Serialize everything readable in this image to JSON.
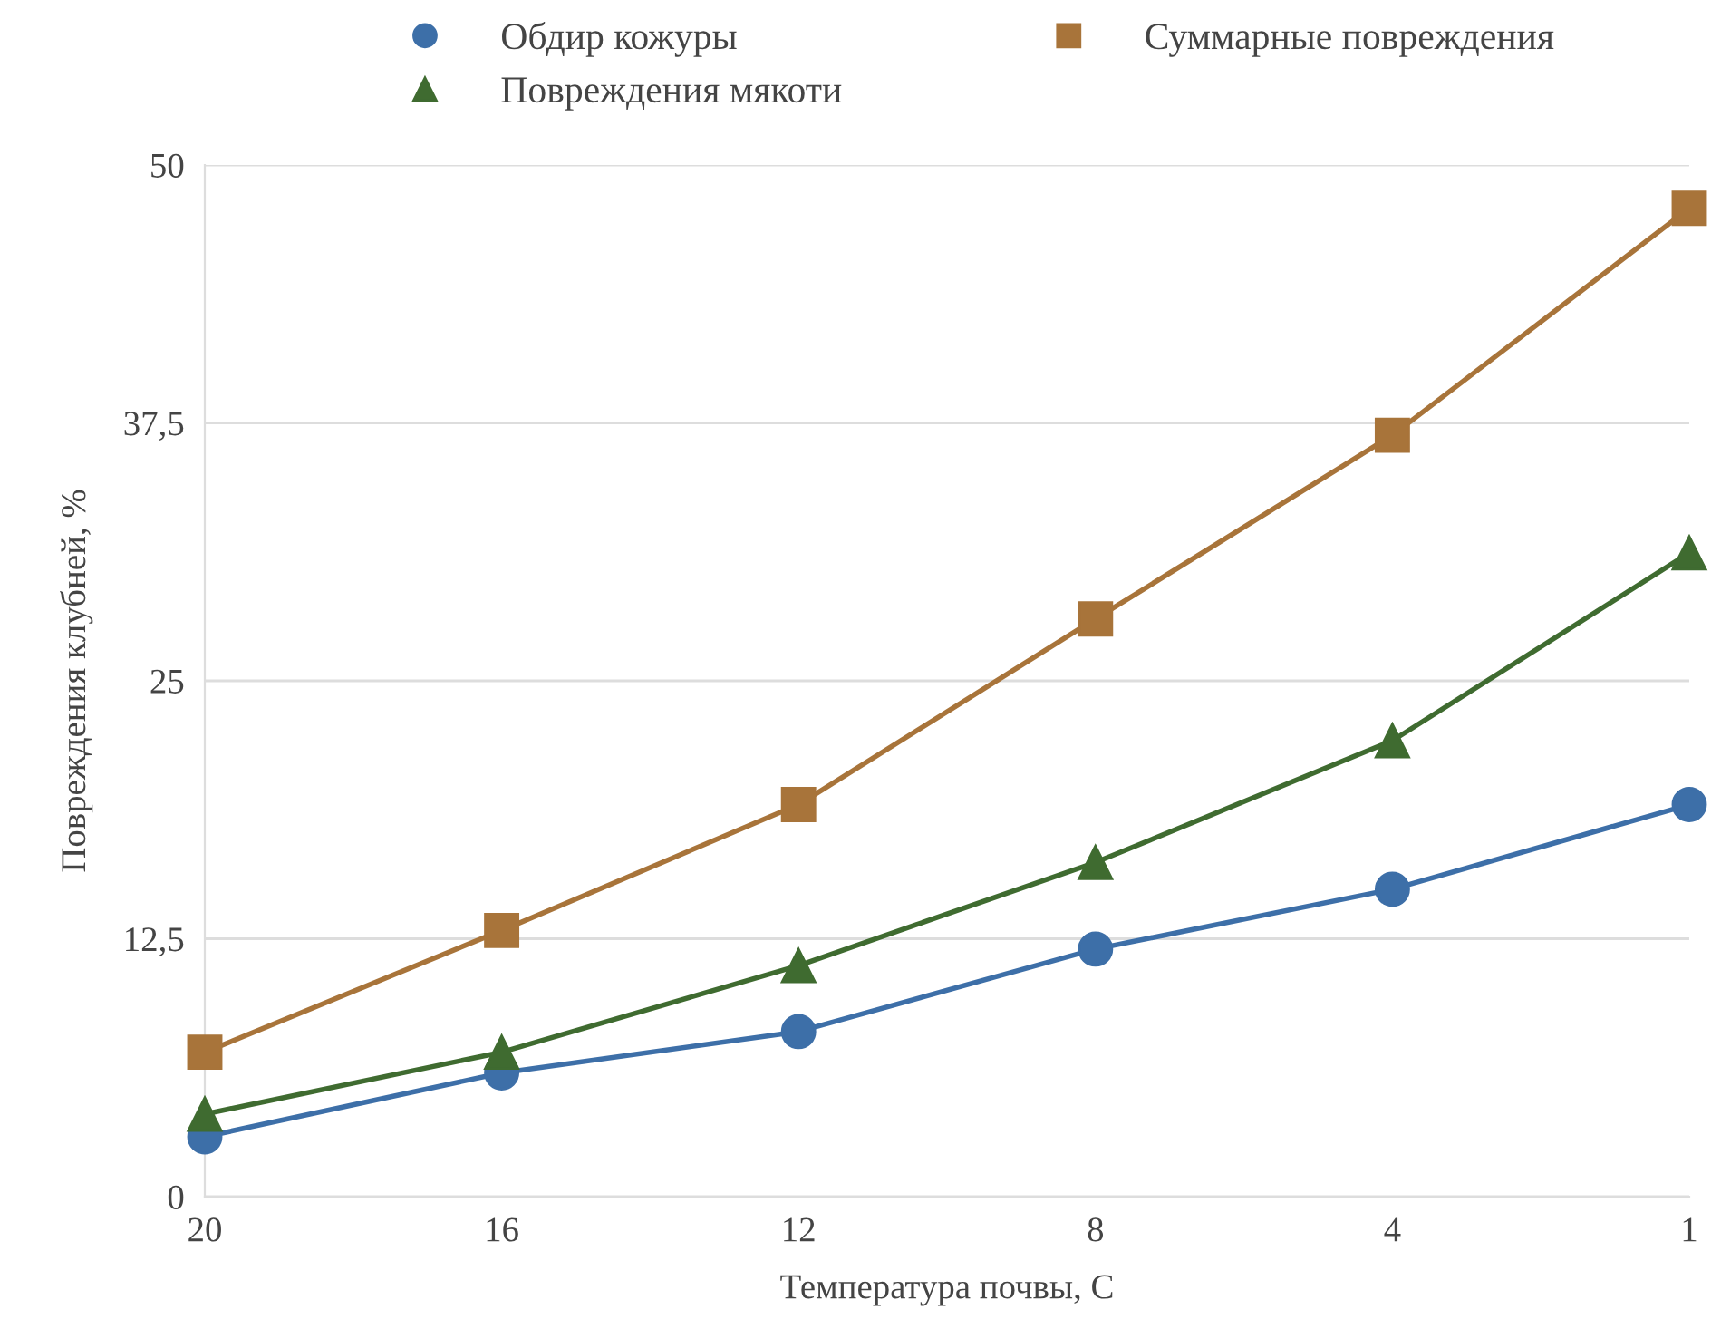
{
  "chart_data": {
    "type": "line",
    "xlabel": "Температура почвы, С",
    "ylabel": "Повреждения клубней, %",
    "categories": [
      "20",
      "16",
      "12",
      "8",
      "4",
      "1"
    ],
    "series": [
      {
        "name": "Обдир кожуры",
        "color": "#3d6fa8",
        "marker": "circle",
        "values": [
          2.9,
          6.0,
          8.0,
          12.0,
          14.9,
          19.0
        ]
      },
      {
        "name": "Повреждения мякоти",
        "color": "#3f6b30",
        "marker": "triangle",
        "values": [
          4.0,
          7.0,
          11.2,
          16.2,
          22.1,
          31.2
        ]
      },
      {
        "name": "Суммарные повреждения",
        "color": "#a8743a",
        "marker": "square",
        "values": [
          7.0,
          12.9,
          19.0,
          28.0,
          36.9,
          47.9
        ]
      }
    ],
    "ylim": [
      0,
      50
    ],
    "yticks": [
      0,
      {
        "value": 12.5,
        "label": "12,5"
      },
      25,
      {
        "value": 37.5,
        "label": "37,5"
      },
      50
    ],
    "grid": "y",
    "legend": "top",
    "line_style": "solid"
  }
}
